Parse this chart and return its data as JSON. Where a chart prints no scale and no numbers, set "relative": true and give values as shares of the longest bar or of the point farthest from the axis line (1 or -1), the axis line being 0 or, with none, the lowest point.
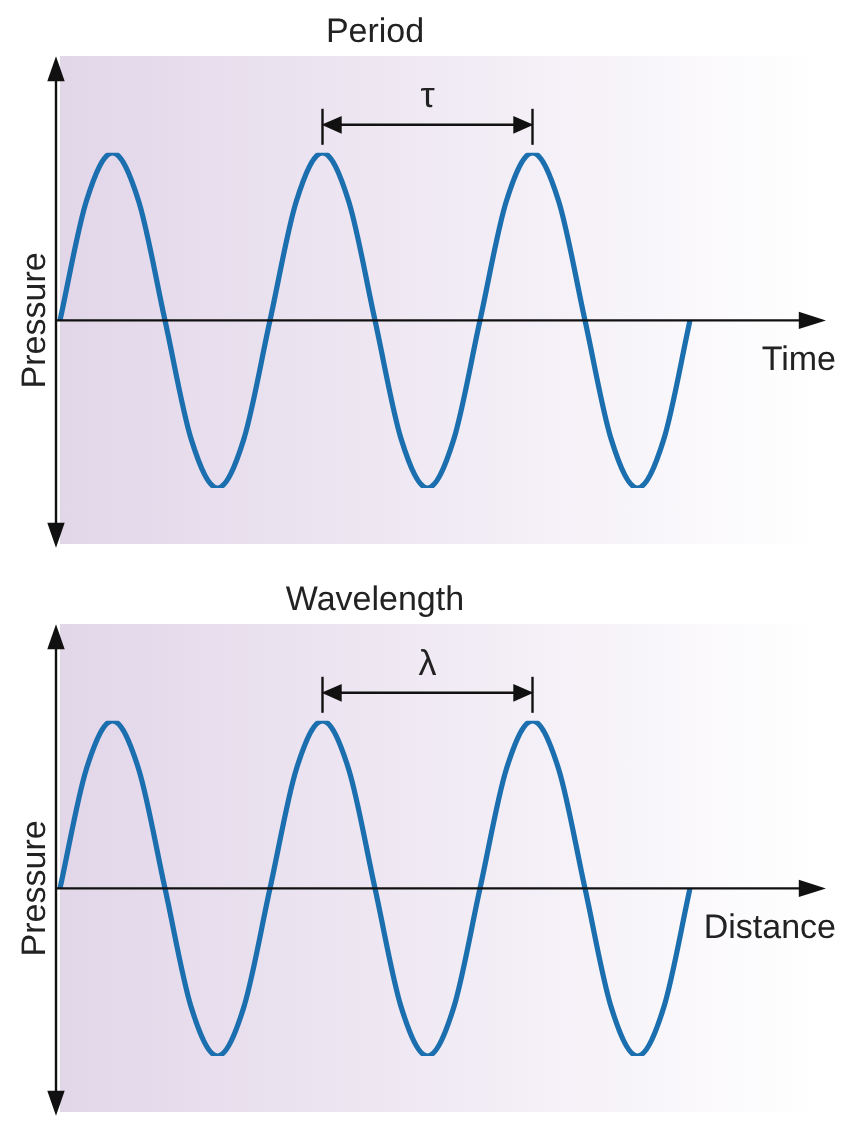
{
  "chart_data": [
    {
      "type": "line",
      "title": "Period",
      "xlabel": "Time",
      "ylabel": "Pressure",
      "annotations": [
        "τ"
      ],
      "relative": true,
      "legend": false,
      "marker": "none",
      "line_style": "solid",
      "categories": [
        null,
        null,
        null,
        null,
        null,
        null,
        null,
        null,
        null,
        null,
        null,
        null,
        null,
        null,
        null,
        null,
        null,
        null,
        null,
        null,
        null,
        null,
        null,
        null,
        null
      ],
      "series": [
        {
          "color": "#1b6fae",
          "values": [
            0,
            0.71,
            1,
            0.71,
            0,
            -0.71,
            -1,
            -0.71,
            0,
            0.71,
            1,
            0.71,
            0,
            -0.71,
            -1,
            -0.71,
            0,
            0.71,
            1,
            0.71,
            0,
            -0.71,
            -1,
            -0.71,
            0
          ]
        }
      ]
    },
    {
      "type": "line",
      "title": "Wavelength",
      "xlabel": "Distance",
      "ylabel": "Pressure",
      "annotations": [
        "λ"
      ],
      "relative": true,
      "legend": false,
      "marker": "none",
      "line_style": "solid",
      "categories": [
        null,
        null,
        null,
        null,
        null,
        null,
        null,
        null,
        null,
        null,
        null,
        null,
        null,
        null,
        null,
        null,
        null,
        null,
        null,
        null,
        null,
        null,
        null,
        null,
        null
      ],
      "series": [
        {
          "color": "#1b6fae",
          "values": [
            0,
            0.71,
            1,
            0.71,
            0,
            -0.71,
            -1,
            -0.71,
            0,
            0.71,
            1,
            0.71,
            0,
            -0.71,
            -1,
            -0.71,
            0,
            0.71,
            1,
            0.71,
            0,
            -0.71,
            -1,
            -0.71,
            0
          ]
        }
      ]
    }
  ]
}
